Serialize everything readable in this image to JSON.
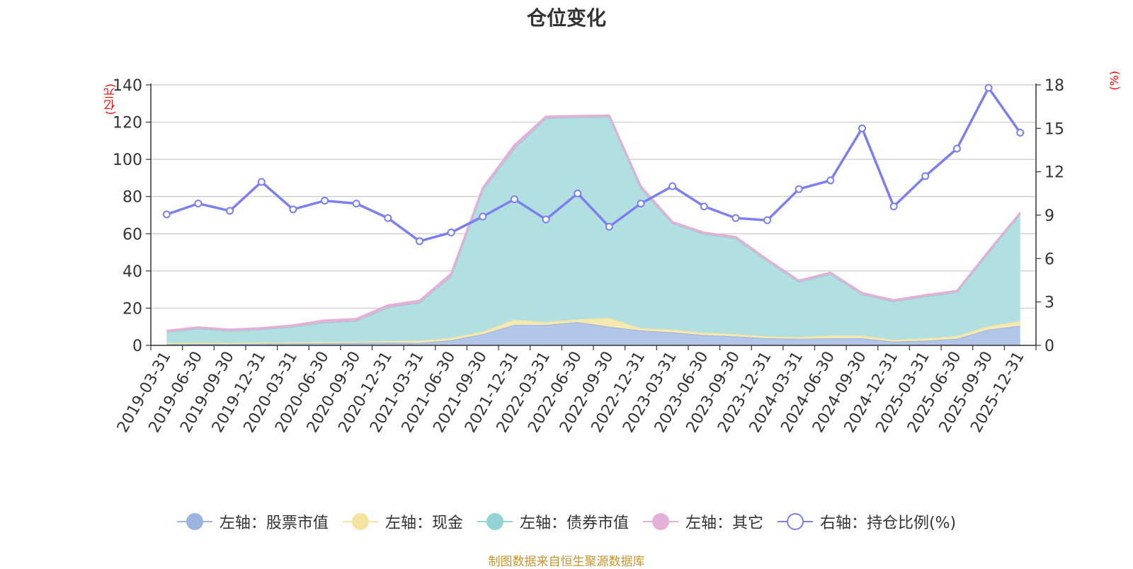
{
  "chart_data": {
    "type": "area",
    "title": "仓位变化",
    "left_axis_unit": "(亿元)",
    "right_axis_unit": "(%)",
    "left_ylim": [
      0,
      140
    ],
    "left_yticks": [
      0,
      20,
      40,
      60,
      80,
      100,
      120,
      140
    ],
    "right_ylim": [
      0,
      18
    ],
    "right_yticks": [
      0,
      3,
      6,
      9,
      12,
      15,
      18
    ],
    "categories": [
      "2019-03-31",
      "2019-06-30",
      "2019-09-30",
      "2019-12-31",
      "2020-03-31",
      "2020-06-30",
      "2020-09-30",
      "2020-12-31",
      "2021-03-31",
      "2021-06-30",
      "2021-09-30",
      "2021-12-31",
      "2022-03-31",
      "2022-06-30",
      "2022-09-30",
      "2022-12-31",
      "2023-03-31",
      "2023-06-30",
      "2023-09-30",
      "2023-12-31",
      "2024-03-31",
      "2024-06-30",
      "2024-09-30",
      "2024-12-31",
      "2025-03-31",
      "2025-06-30",
      "2025-09-30",
      "2025-12-31"
    ],
    "series": [
      {
        "name": "左轴：股票市值",
        "axis": "left",
        "color": "#9db4e0",
        "values": [
          0.6,
          0.8,
          0.7,
          0.9,
          1.0,
          1.1,
          1.3,
          1.5,
          1.3,
          2.8,
          6.0,
          11.0,
          11.0,
          12.5,
          10.0,
          8.0,
          7.0,
          5.5,
          4.8,
          3.8,
          3.5,
          3.8,
          3.8,
          2.0,
          2.5,
          3.5,
          8.5,
          10.5
        ]
      },
      {
        "name": "左轴：现金",
        "axis": "left",
        "color": "#f5e4a0",
        "values": [
          0.6,
          0.7,
          0.6,
          0.6,
          0.6,
          0.7,
          0.7,
          0.8,
          1.2,
          1.2,
          1.4,
          2.8,
          1.5,
          1.5,
          4.8,
          1.2,
          1.5,
          1.3,
          1.2,
          1.0,
          1.0,
          1.5,
          1.5,
          1.0,
          1.2,
          1.5,
          1.8,
          2.5
        ]
      },
      {
        "name": "左轴：债券市值",
        "axis": "left",
        "color": "#94d3d3",
        "values": [
          5.8,
          7.4,
          6.4,
          7.0,
          8.4,
          10.4,
          11.0,
          18.0,
          20.3,
          33.0,
          76.0,
          92.0,
          109.5,
          108.5,
          108.0,
          75.0,
          57.0,
          53.0,
          51.5,
          40.5,
          29.5,
          33.0,
          22.0,
          20.5,
          22.5,
          23.5,
          39.5,
          57.5
        ]
      },
      {
        "name": "左轴：其它",
        "axis": "left",
        "color": "#e5b0d8",
        "values": [
          0.8,
          0.8,
          0.8,
          0.8,
          0.8,
          1.2,
          1.2,
          1.2,
          1.2,
          1.5,
          1.2,
          1.8,
          1.0,
          0.8,
          0.8,
          1.2,
          0.8,
          0.8,
          0.8,
          0.8,
          0.8,
          0.8,
          0.8,
          0.8,
          0.8,
          0.8,
          0.8,
          0.8
        ]
      },
      {
        "name": "右轴：持仓比例(%)",
        "axis": "right",
        "color": "#7b7ff0",
        "values": [
          9.05,
          9.8,
          9.3,
          11.3,
          9.4,
          10.0,
          9.8,
          8.8,
          7.2,
          7.8,
          8.9,
          10.1,
          8.7,
          10.5,
          8.2,
          9.8,
          11.0,
          9.6,
          8.8,
          8.65,
          10.8,
          11.4,
          15.0,
          9.6,
          11.7,
          13.6,
          17.8,
          14.7
        ]
      }
    ],
    "legend_position": "bottom-center"
  },
  "source_note": "制图数据来自恒生聚源数据库"
}
